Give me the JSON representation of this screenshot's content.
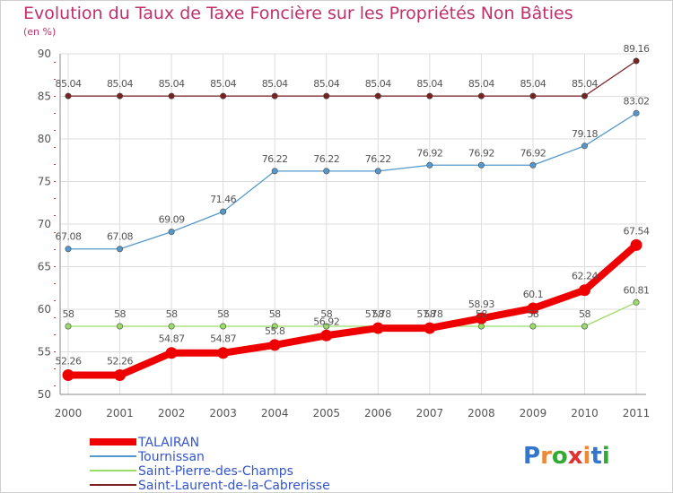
{
  "chart_data": {
    "type": "line",
    "title": "Evolution du Taux de Taxe Foncière sur les Propriétés Non Bâties",
    "ylabel": "(en %)",
    "xlabel": "",
    "x": [
      "2000",
      "2001",
      "2002",
      "2003",
      "2004",
      "2005",
      "2006",
      "2007",
      "2008",
      "2009",
      "2010",
      "2011"
    ],
    "ylim": [
      50,
      90
    ],
    "yticks": [
      "50",
      "55",
      "60",
      "65",
      "70",
      "75",
      "80",
      "85",
      "90"
    ],
    "grid": true,
    "legend_position": "bottom-left",
    "series": [
      {
        "name": "TALAIRAN",
        "color": "#ee0000",
        "values": [
          52.26,
          52.26,
          54.87,
          54.87,
          55.8,
          56.92,
          57.78,
          57.78,
          58.93,
          60.1,
          62.24,
          67.54
        ],
        "labels": [
          "52.26",
          "52.26",
          "54.87",
          "54.87",
          "55.8",
          "56.92",
          "57.78",
          "57.78",
          "58.93",
          "60.1",
          "62.24",
          "67.54"
        ]
      },
      {
        "name": "Tournissan",
        "color": "#5599cc",
        "values": [
          67.08,
          67.08,
          69.09,
          71.46,
          76.22,
          76.22,
          76.22,
          76.92,
          76.92,
          76.92,
          79.18,
          83.02
        ],
        "labels": [
          "67.08",
          "67.08",
          "69.09",
          "71.46",
          "76.22",
          "76.22",
          "76.22",
          "76.92",
          "76.92",
          "76.92",
          "79.18",
          "83.02"
        ]
      },
      {
        "name": "Saint-Pierre-des-Champs",
        "color": "#99dd66",
        "values": [
          58,
          58,
          58,
          58,
          58,
          58,
          58,
          58,
          58,
          58,
          58,
          60.81
        ],
        "labels": [
          "58",
          "58",
          "58",
          "58",
          "58",
          "58",
          "58",
          "58",
          "58",
          "58",
          "58",
          "60.81"
        ]
      },
      {
        "name": "Saint-Laurent-de-la-Cabrerisse",
        "color": "#7a2222",
        "values": [
          85.04,
          85.04,
          85.04,
          85.04,
          85.04,
          85.04,
          85.04,
          85.04,
          85.04,
          85.04,
          85.04,
          89.16
        ],
        "labels": [
          "85.04",
          "85.04",
          "85.04",
          "85.04",
          "85.04",
          "85.04",
          "85.04",
          "85.04",
          "85.04",
          "85.04",
          "85.04",
          "89.16"
        ]
      }
    ]
  },
  "watermark": {
    "text": "Proxiti"
  }
}
